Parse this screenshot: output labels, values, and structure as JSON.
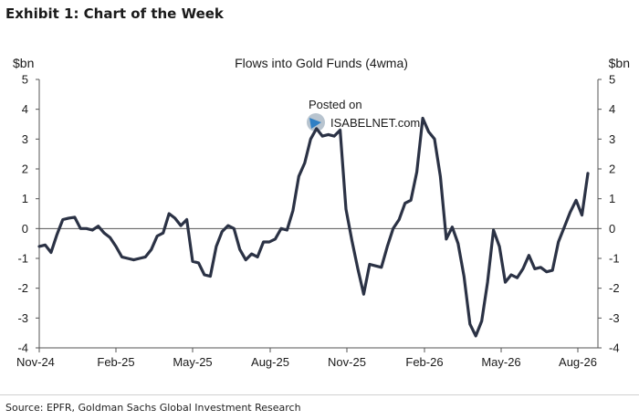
{
  "exhibit": {
    "title": "Exhibit 1: Chart of the Week",
    "source": "Source: EPFR, Goldman Sachs Global Investment Research"
  },
  "watermark": {
    "line1": "Posted on",
    "line2": "ISABELNET.com"
  },
  "chart_data": {
    "type": "line",
    "title": "Flows into Gold Funds (4wma)",
    "ylabel_left": "$bn",
    "ylabel_right": "$bn",
    "ylim": [
      -4,
      5
    ],
    "yticks": [
      "5",
      "4",
      "3",
      "2",
      "1",
      "0",
      "-1",
      "-2",
      "-3",
      "-4"
    ],
    "xtick_labels": [
      "Nov-24",
      "Feb-25",
      "May-25",
      "Aug-25",
      "Nov-25",
      "Feb-26",
      "May-26",
      "Aug-26"
    ],
    "line_color": "#2b3245",
    "grid": false,
    "series": [
      {
        "values": [
          -0.6,
          -0.55,
          -0.8,
          -0.2,
          0.3,
          0.35,
          0.38,
          0.0,
          0.0,
          -0.05,
          0.08,
          -0.15,
          -0.3,
          -0.6,
          -0.95,
          -1.0,
          -1.05,
          -1.0,
          -0.95,
          -0.7,
          -0.25,
          -0.15,
          0.5,
          0.35,
          0.1,
          0.3,
          -1.1,
          -1.15,
          -1.55,
          -1.6,
          -0.6,
          -0.1,
          0.1,
          0.0,
          -0.7,
          -1.05,
          -0.85,
          -0.95,
          -0.45,
          -0.45,
          -0.35,
          0.0,
          -0.05,
          0.6,
          1.75,
          2.2,
          3.0,
          3.35,
          3.1,
          3.15,
          3.1,
          3.3,
          0.65,
          -0.4,
          -1.35,
          -2.2,
          -1.2,
          -1.25,
          -1.3,
          -0.6,
          0.0,
          0.3,
          0.85,
          0.95,
          1.9,
          3.7,
          3.25,
          3.0,
          1.75,
          -0.35,
          0.05,
          -0.5,
          -1.6,
          -3.2,
          -3.6,
          -3.1,
          -1.8,
          -0.05,
          -0.6,
          -1.8,
          -1.55,
          -1.65,
          -1.35,
          -0.9,
          -1.35,
          -1.3,
          -1.45,
          -1.4,
          -0.45,
          0.05,
          0.55,
          0.95,
          0.45,
          1.85
        ]
      }
    ]
  }
}
